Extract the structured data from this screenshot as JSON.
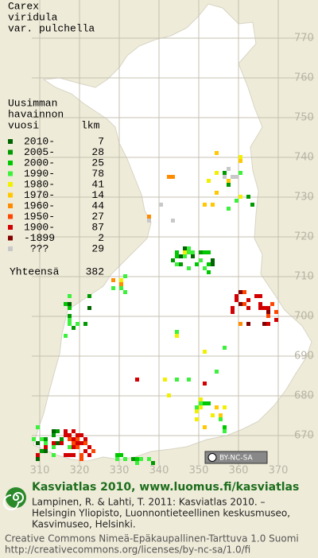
{
  "title": [
    "Carex",
    "viridula",
    "var. pulchella"
  ],
  "legend": {
    "header": [
      "Uusimman",
      "havainnon",
      "vuosi"
    ],
    "count_header": "lkm",
    "rows": [
      {
        "label": "2010-",
        "count": 7,
        "color": "#006400"
      },
      {
        "label": "2005-",
        "count": 28,
        "color": "#009a00"
      },
      {
        "label": "2000-",
        "count": 25,
        "color": "#00c800"
      },
      {
        "label": "1990-",
        "count": 78,
        "color": "#3cf03c"
      },
      {
        "label": "1980-",
        "count": 41,
        "color": "#f0f000"
      },
      {
        "label": "1970-",
        "count": 14,
        "color": "#ffc800"
      },
      {
        "label": "1960-",
        "count": 44,
        "color": "#ff8c00"
      },
      {
        "label": "1950-",
        "count": 27,
        "color": "#ff4600"
      },
      {
        "label": "1900-",
        "count": 87,
        "color": "#d20000"
      },
      {
        "label": "-1899",
        "count": 2,
        "color": "#820000"
      },
      {
        "label": "???",
        "count": 29,
        "color": "#c8c8c8"
      }
    ],
    "total_label": "Yhteensä",
    "total": 382
  },
  "grid": {
    "xticks": [
      310,
      320,
      330,
      340,
      350,
      360,
      370
    ],
    "yticks": [
      770,
      760,
      750,
      740,
      730,
      720,
      710,
      700,
      690,
      680,
      670
    ]
  },
  "license_badge": "BY-NC-SA",
  "footer": {
    "heading": "Kasviatlas 2010, www.luomus.fi/kasviatlas",
    "citation": [
      "Lampinen, R. & Lahti, T. 2011: Kasviatlas 2010. –",
      "Helsingin Yliopisto, Luonnontieteellinen keskusmuseo,",
      "Kasvimuseo, Helsinki."
    ],
    "license": [
      "Creative Commons Nimeä-Epäkaupallinen-Tarttuva 1.0 Suomi",
      "http://creativecommons.org/licenses/by-nc-sa/1.0/fi"
    ]
  }
}
